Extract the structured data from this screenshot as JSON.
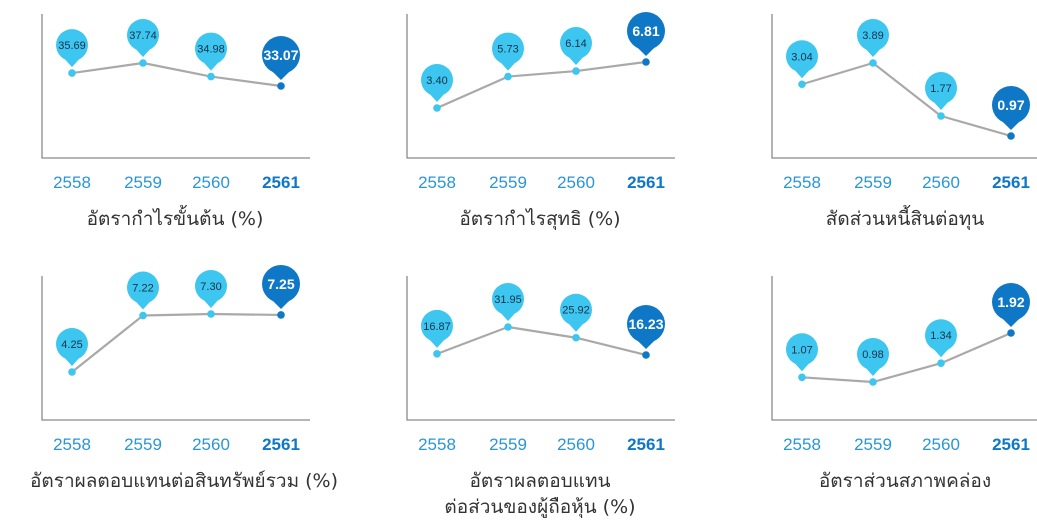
{
  "colors": {
    "bubble_light": "#3cc6f0",
    "bubble_dark": "#0f78c6",
    "line": "#a9a9a9",
    "axis": "#8a8a8a",
    "tick_light": "#2a96d6",
    "tick_dark": "#0f78c6",
    "title": "#333333"
  },
  "chart_data": [
    {
      "type": "line",
      "title": "อัตรากำไรขั้นต้น (%)",
      "categories": [
        "2558",
        "2559",
        "2560",
        "2561"
      ],
      "values": [
        35.69,
        37.74,
        34.98,
        33.07
      ],
      "labels": [
        "35.69",
        "37.74",
        "34.98",
        "33.07"
      ],
      "highlight": "2561",
      "grid": false
    },
    {
      "type": "line",
      "title": "อัตรากำไรสุทธิ (%)",
      "categories": [
        "2558",
        "2559",
        "2560",
        "2561"
      ],
      "values": [
        3.4,
        5.73,
        6.14,
        6.81
      ],
      "labels": [
        "3.40",
        "5.73",
        "6.14",
        "6.81"
      ],
      "highlight": "2561",
      "grid": false
    },
    {
      "type": "line",
      "title": "สัดส่วนหนี้สินต่อทุน",
      "categories": [
        "2558",
        "2559",
        "2560",
        "2561"
      ],
      "values": [
        3.04,
        3.89,
        1.77,
        0.97
      ],
      "labels": [
        "3.04",
        "3.89",
        "1.77",
        "0.97"
      ],
      "highlight": "2561",
      "grid": false
    },
    {
      "type": "line",
      "title": "อัตราผลตอบแทนต่อสินทรัพย์รวม (%)",
      "categories": [
        "2558",
        "2559",
        "2560",
        "2561"
      ],
      "values": [
        4.25,
        7.22,
        7.3,
        7.25
      ],
      "labels": [
        "4.25",
        "7.22",
        "7.30",
        "7.25"
      ],
      "highlight": "2561",
      "grid": false
    },
    {
      "type": "line",
      "title": "อัตราผลตอบแทน\nต่อส่วนของผู้ถือหุ้น (%)",
      "categories": [
        "2558",
        "2559",
        "2560",
        "2561"
      ],
      "values": [
        16.87,
        31.95,
        25.92,
        16.23
      ],
      "labels": [
        "16.87",
        "31.95",
        "25.92",
        "16.23"
      ],
      "highlight": "2561",
      "grid": false
    },
    {
      "type": "line",
      "title": "อัตราส่วนสภาพคล่อง",
      "categories": [
        "2558",
        "2559",
        "2560",
        "2561"
      ],
      "values": [
        1.07,
        0.98,
        1.34,
        1.92
      ],
      "labels": [
        "1.07",
        "0.98",
        "1.34",
        "1.92"
      ],
      "highlight": "2561",
      "grid": false
    }
  ]
}
